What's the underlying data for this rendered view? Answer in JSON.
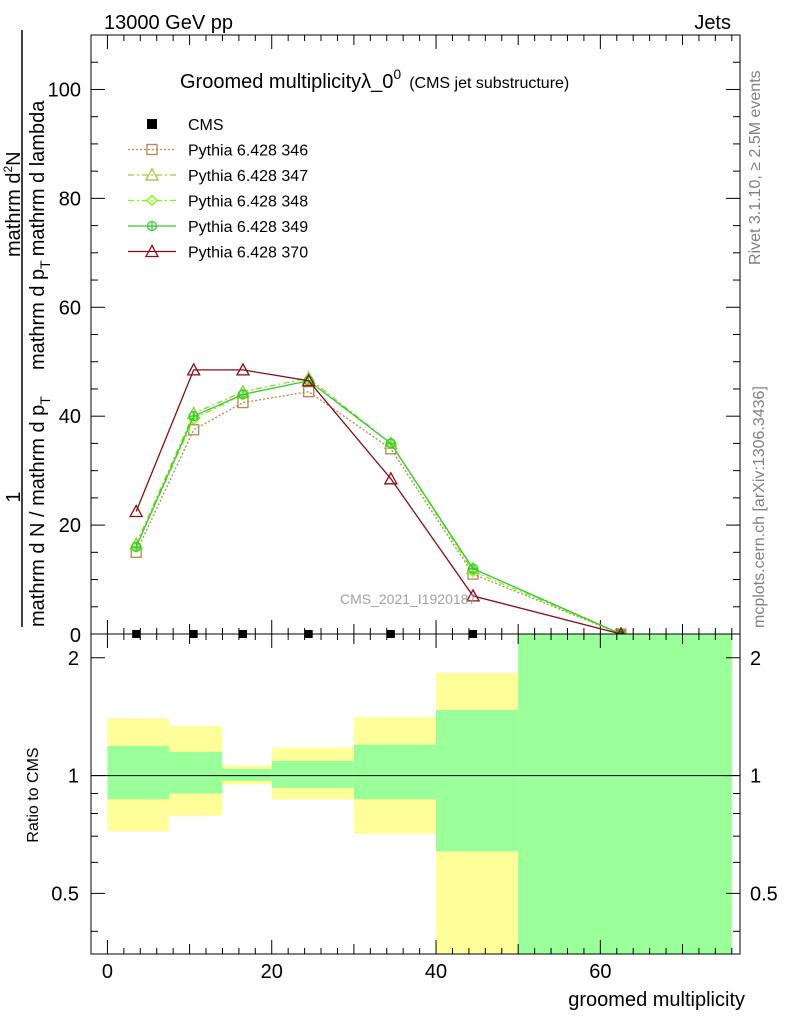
{
  "header": {
    "left": "13000 GeV pp",
    "right": "Jets"
  },
  "title": {
    "main": "Groomed multiplicityλ_0",
    "sup": "0",
    "sub": "(CMS jet substructure)"
  },
  "ylabel": {
    "frac_num": "1",
    "frac_den": "mathrm d N / mathrm d p",
    "frac_den_sub": "T",
    "rest_a": "mathrm d",
    "rest_a_sup": "2",
    "rest_b": "N",
    "rest_c": "mathrm d p",
    "rest_c_sub": "T",
    "rest_d": "mathrm d lambda"
  },
  "side": {
    "rivet": "Rivet 3.1.10, ≥ 2.5M events",
    "mcplots": "mcplots.cern.ch [arXiv:1306.3436]"
  },
  "watermark": "CMS_2021_I1920187",
  "ratio_ylabel": "Ratio to CMS",
  "xlabel": "groomed multiplicity",
  "colors": {
    "cms": "#000000",
    "p346": "#b8864b",
    "p347": "#9acd32",
    "p348": "#7cfc00",
    "p349": "#32cd32",
    "p370": "#8b0a1a",
    "band_outer": "#ffff99",
    "band_inner": "#99ff99"
  },
  "chart_data": [
    {
      "type": "line",
      "title": "Groomed multiplicityλ_0^0 (CMS jet substructure)",
      "xlim": [
        -2,
        77
      ],
      "ylim": [
        0,
        110
      ],
      "yticks": [
        20,
        40,
        60,
        80,
        100
      ],
      "ytick_labels": [
        "20",
        "40",
        "60",
        "80",
        "100"
      ],
      "bottom_label": "0",
      "legend": "top-left",
      "series": [
        {
          "name": "CMS",
          "key": "cms",
          "marker": "square-filled",
          "x": [
            3.5,
            10.5,
            16.5,
            24.5,
            34.5,
            44.5,
            62.5
          ],
          "y": [
            0,
            0,
            0,
            0,
            0,
            0,
            0
          ]
        },
        {
          "name": "Pythia 6.428 346",
          "key": "p346",
          "marker": "square-open",
          "dash": "dotted",
          "x": [
            3.5,
            10.5,
            16.5,
            24.5,
            34.5,
            44.5,
            62.5
          ],
          "y": [
            15,
            37.5,
            42.5,
            44.5,
            34,
            11,
            0
          ]
        },
        {
          "name": "Pythia 6.428 347",
          "key": "p347",
          "marker": "triangle-open",
          "dash": "dashdot",
          "x": [
            3.5,
            10.5,
            16.5,
            24.5,
            34.5,
            44.5,
            62.5
          ],
          "y": [
            16.5,
            40.5,
            44.5,
            47,
            35,
            12,
            0
          ]
        },
        {
          "name": "Pythia 6.428 348",
          "key": "p348",
          "marker": "diamond-open",
          "dash": "dashdot",
          "x": [
            3.5,
            10.5,
            16.5,
            24.5,
            34.5,
            44.5,
            62.5
          ],
          "y": [
            16,
            39.5,
            44,
            46.5,
            35,
            11.5,
            0
          ]
        },
        {
          "name": "Pythia 6.428 349",
          "key": "p349",
          "marker": "circle-cross",
          "dash": "solid",
          "x": [
            3.5,
            10.5,
            16.5,
            24.5,
            34.5,
            44.5,
            62.5
          ],
          "y": [
            16,
            40,
            44,
            46.5,
            35,
            12,
            0
          ]
        },
        {
          "name": "Pythia 6.428 370",
          "key": "p370",
          "marker": "triangle-open",
          "dash": "solid",
          "x": [
            3.5,
            10.5,
            16.5,
            24.5,
            34.5,
            44.5,
            62.5
          ],
          "y": [
            22.5,
            48.5,
            48.5,
            46.5,
            28.5,
            7,
            0
          ]
        }
      ]
    },
    {
      "type": "area",
      "ylabel": "Ratio to CMS",
      "xlabel": "groomed multiplicity",
      "xlim": [
        -2,
        77
      ],
      "ylim": [
        0.35,
        2.3
      ],
      "yscale": "log",
      "yticks": [
        0.5,
        1,
        2
      ],
      "ytick_labels": [
        "0.5",
        "1",
        "2"
      ],
      "xticks": [
        0,
        20,
        40,
        60
      ],
      "xtick_labels": [
        "0",
        "20",
        "40",
        "60"
      ],
      "reference_line": 1,
      "bins": [
        {
          "lo": 0,
          "hi": 7.5,
          "outer": [
            0.72,
            1.4
          ],
          "inner": [
            0.87,
            1.19
          ]
        },
        {
          "lo": 7.5,
          "hi": 14,
          "outer": [
            0.79,
            1.34
          ],
          "inner": [
            0.9,
            1.15
          ]
        },
        {
          "lo": 14,
          "hi": 20,
          "outer": [
            0.95,
            1.06
          ],
          "inner": [
            0.97,
            1.04
          ]
        },
        {
          "lo": 20,
          "hi": 30,
          "outer": [
            0.87,
            1.18
          ],
          "inner": [
            0.93,
            1.09
          ]
        },
        {
          "lo": 30,
          "hi": 40,
          "outer": [
            0.71,
            1.41
          ],
          "inner": [
            0.87,
            1.2
          ]
        },
        {
          "lo": 40,
          "hi": 50,
          "outer": [
            0.3,
            1.83
          ],
          "inner": [
            0.64,
            1.47
          ]
        },
        {
          "lo": 50,
          "hi": 76,
          "outer": [
            0.3,
            2.5
          ],
          "inner": [
            0.3,
            2.5
          ]
        }
      ]
    }
  ]
}
